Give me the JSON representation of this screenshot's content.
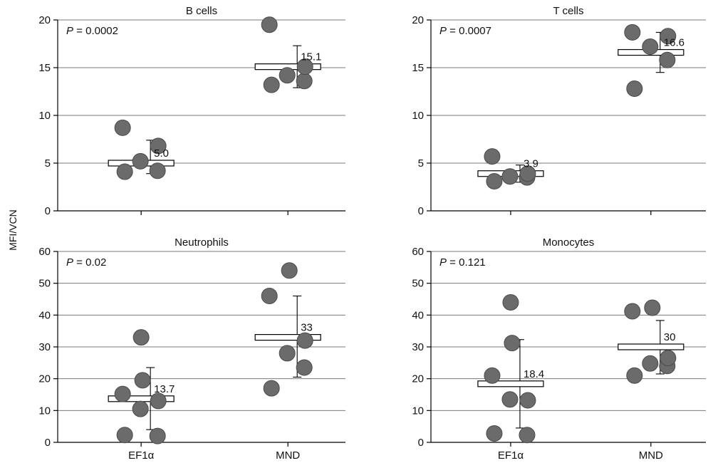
{
  "ylabel": "MFI/VCN",
  "chart_data": [
    {
      "type": "scatter",
      "title": "B cells",
      "pvalue_prefix": "P",
      "pvalue_value": " = 0.0002",
      "categories": [
        "EF1α",
        "MND"
      ],
      "ylim": [
        0,
        20
      ],
      "yticks": [
        0,
        5,
        10,
        15,
        20
      ],
      "grid": true,
      "groups": [
        {
          "category": "EF1α",
          "mean": 5.0,
          "mean_label": "5.0",
          "err_low": 3.9,
          "err_high": 7.4,
          "points": [
            4.1,
            4.2,
            5.2,
            6.8,
            8.7
          ]
        },
        {
          "category": "MND",
          "mean": 15.1,
          "mean_label": "15.1",
          "err_low": 12.9,
          "err_high": 17.3,
          "points": [
            13.2,
            13.6,
            14.2,
            15.1,
            19.5
          ]
        }
      ]
    },
    {
      "type": "scatter",
      "title": "T cells",
      "pvalue_prefix": "P",
      "pvalue_value": " = 0.0007",
      "categories": [
        "EF1α",
        "MND"
      ],
      "ylim": [
        0,
        20
      ],
      "yticks": [
        0,
        5,
        10,
        15,
        20
      ],
      "grid": true,
      "groups": [
        {
          "category": "EF1α",
          "mean": 3.9,
          "mean_label": "3.9",
          "err_low": 3.0,
          "err_high": 4.8,
          "points": [
            3.1,
            3.5,
            3.6,
            3.9,
            5.7
          ]
        },
        {
          "category": "MND",
          "mean": 16.6,
          "mean_label": "16.6",
          "err_low": 14.5,
          "err_high": 18.7,
          "points": [
            12.8,
            15.8,
            17.2,
            18.3,
            18.7
          ]
        }
      ]
    },
    {
      "type": "scatter",
      "title": "Neutrophils",
      "pvalue_prefix": "P",
      "pvalue_value": " = 0.02",
      "categories": [
        "EF1α",
        "MND"
      ],
      "ylim": [
        0,
        60
      ],
      "yticks": [
        0,
        10,
        20,
        30,
        40,
        50,
        60
      ],
      "grid": true,
      "groups": [
        {
          "category": "EF1α",
          "mean": 13.7,
          "mean_label": "13.7",
          "err_low": 4.0,
          "err_high": 23.5,
          "points": [
            2.3,
            2.0,
            10.5,
            13.0,
            15.2,
            19.5,
            33.0
          ]
        },
        {
          "category": "MND",
          "mean": 33,
          "mean_label": "33",
          "err_low": 20.5,
          "err_high": 46.0,
          "points": [
            17.0,
            23.5,
            28.0,
            32.0,
            46.0,
            54.0
          ]
        }
      ]
    },
    {
      "type": "scatter",
      "title": "Monocytes",
      "pvalue_prefix": "P",
      "pvalue_value": " = 0.121",
      "categories": [
        "EF1α",
        "MND"
      ],
      "ylim": [
        0,
        60
      ],
      "yticks": [
        0,
        10,
        20,
        30,
        40,
        50,
        60
      ],
      "grid": true,
      "groups": [
        {
          "category": "EF1α",
          "mean": 18.4,
          "mean_label": "18.4",
          "err_low": 4.5,
          "err_high": 32.3,
          "points": [
            2.8,
            2.3,
            13.5,
            13.2,
            21.0,
            31.2,
            44.0
          ]
        },
        {
          "category": "MND",
          "mean": 30,
          "mean_label": "30",
          "err_low": 21.5,
          "err_high": 38.3,
          "points": [
            21.0,
            24.0,
            24.8,
            26.5,
            41.2,
            42.3
          ]
        }
      ]
    }
  ]
}
